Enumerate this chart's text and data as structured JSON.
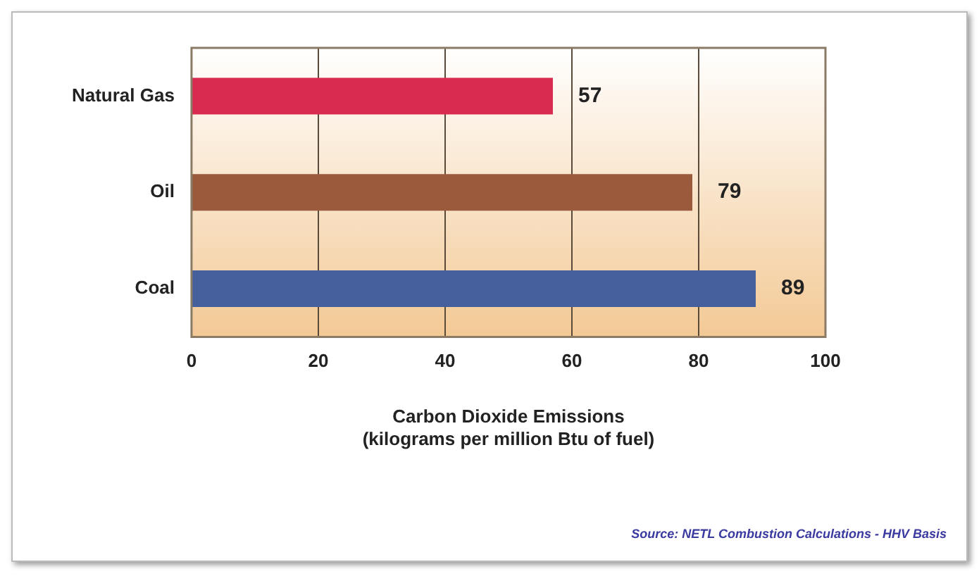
{
  "chart_data": {
    "type": "bar",
    "orientation": "horizontal",
    "categories": [
      "Natural Gas",
      "Oil",
      "Coal"
    ],
    "values": [
      57,
      79,
      89
    ],
    "colors": [
      "#d92a50",
      "#9c5a3c",
      "#46609e"
    ],
    "xlim": [
      0,
      100
    ],
    "xticks": [
      0,
      20,
      40,
      60,
      80,
      100
    ],
    "grid": "x",
    "data_labels": true,
    "legend": false,
    "xlabel": "Carbon Dioxide Emissions\n(kilograms per million Btu of fuel)",
    "annotations": [
      "Source: NETL Combustion Calculations - HHV Basis"
    ]
  }
}
